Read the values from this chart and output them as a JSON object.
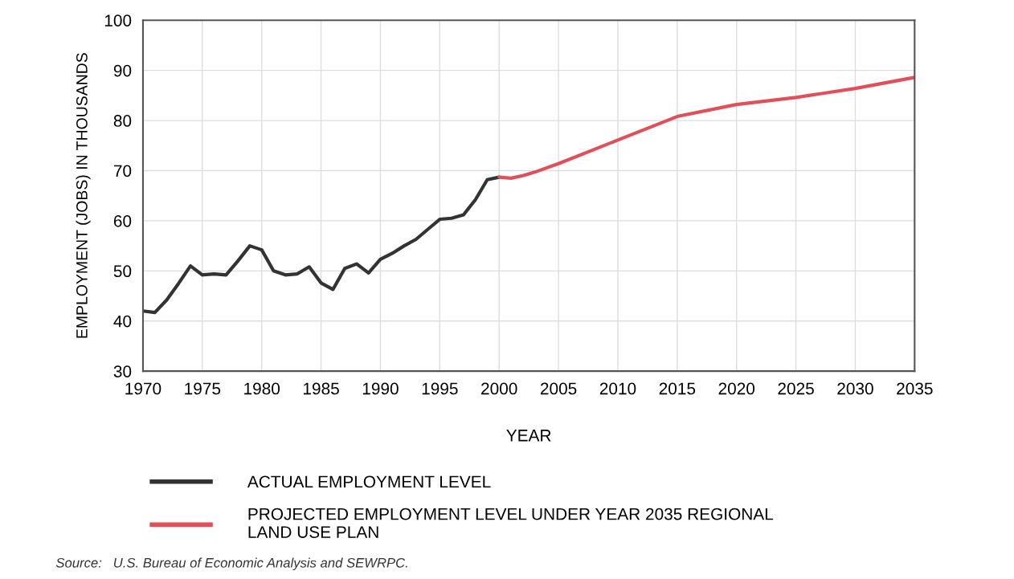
{
  "chart_data": {
    "type": "line",
    "xlabel": "YEAR",
    "ylabel": "EMPLOYMENT (JOBS) IN THOUSANDS",
    "series": [
      {
        "name": "ACTUAL EMPLOYMENT LEVEL",
        "color": "#333333",
        "x": [
          1970,
          1971,
          1972,
          1973,
          1974,
          1975,
          1976,
          1977,
          1978,
          1979,
          1980,
          1981,
          1982,
          1983,
          1984,
          1985,
          1986,
          1987,
          1988,
          1989,
          1990,
          1991,
          1992,
          1993,
          1994,
          1995,
          1996,
          1997,
          1998,
          1999,
          2000
        ],
        "values": [
          42,
          41.7,
          44.2,
          47.5,
          51,
          49.2,
          49.4,
          49.2,
          52,
          55,
          54.2,
          50,
          49.2,
          49.4,
          50.8,
          47.6,
          46.3,
          50.5,
          51.4,
          49.6,
          52.3,
          53.5,
          55,
          56.3,
          58.3,
          60.3,
          60.5,
          61.2,
          64.2,
          68.2,
          68.7
        ]
      },
      {
        "name": "PROJECTED EMPLOYMENT LEVEL UNDER YEAR 2035 REGIONAL\nLAND USE PLAN",
        "color": "#e0505a",
        "x": [
          2000,
          2001,
          2002,
          2003,
          2005,
          2010,
          2015,
          2020,
          2025,
          2030,
          2035
        ],
        "values": [
          68.7,
          68.5,
          69,
          69.7,
          71.4,
          76.1,
          80.8,
          83.2,
          84.6,
          86.4,
          88.6
        ]
      }
    ],
    "xlim": [
      1970,
      2035
    ],
    "xticks": [
      1970,
      1975,
      1980,
      1985,
      1990,
      1995,
      2000,
      2005,
      2010,
      2015,
      2020,
      2025,
      2030,
      2035
    ],
    "ylim": [
      30,
      100
    ],
    "yticks": [
      30,
      40,
      50,
      60,
      70,
      80,
      90,
      100
    ],
    "grid": true,
    "legend": "bottom left",
    "marker": "none",
    "line_style": "solid",
    "annotations": [
      "Source:   U.S. Bureau of Economic Analysis and SEWRPC."
    ]
  }
}
